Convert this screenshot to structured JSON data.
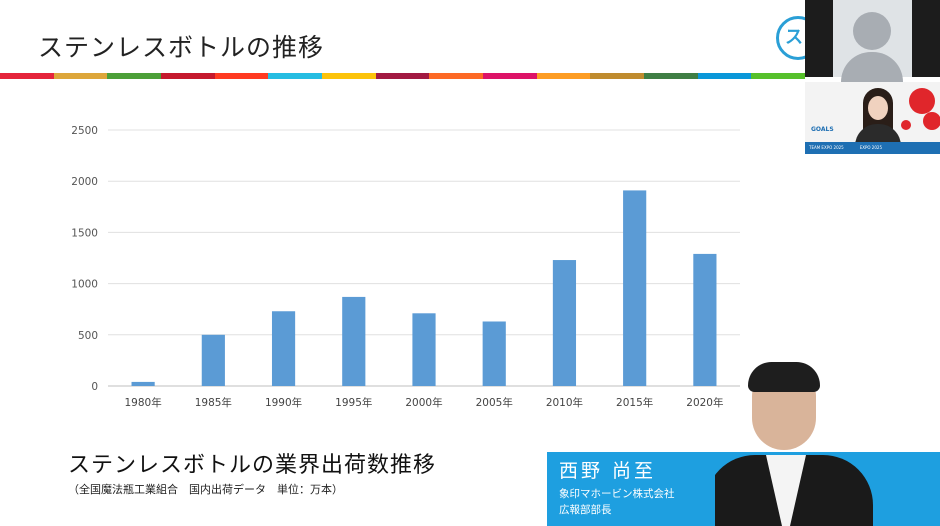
{
  "slide": {
    "title": "ステンレスボトルの推移",
    "caption": "ステンレスボトルの業界出荷数推移",
    "source": "（全国魔法瓶工業組合　国内出荷データ　単位：万本）",
    "stripe_colors": [
      "#e5243b",
      "#dda63a",
      "#4c9f38",
      "#c5192d",
      "#ff3a21",
      "#26bde2",
      "#fcc30b",
      "#a21942",
      "#fd6925",
      "#dd1367",
      "#fd9d24",
      "#bf8b2e",
      "#3f7e44",
      "#0a97d9",
      "#56c02b"
    ]
  },
  "presenter": {
    "name": "西野 尚至",
    "company": "象印マホービン株式会社",
    "position": "広報部部長",
    "card_color": "#1e9fe0"
  },
  "video_tiles": {
    "top": {
      "icon": "person-avatar-icon"
    },
    "middle": {
      "logo_text": "GOALS",
      "strip_text": "TEAM EXPO 2025　　　　EXPO 2025"
    }
  },
  "logo": {
    "text": "スバ"
  },
  "chart_data": {
    "type": "bar",
    "categories": [
      "1980年",
      "1985年",
      "1990年",
      "1995年",
      "2000年",
      "2005年",
      "2010年",
      "2015年",
      "2020年"
    ],
    "values": [
      40,
      500,
      730,
      870,
      710,
      630,
      1230,
      1910,
      1290
    ],
    "ylim": [
      0,
      2500
    ],
    "yticks": [
      0,
      500,
      1000,
      1500,
      2000,
      2500
    ],
    "title": "",
    "xlabel": "",
    "ylabel": "",
    "bar_color": "#5b9bd5",
    "grid": true,
    "legend": "none"
  }
}
